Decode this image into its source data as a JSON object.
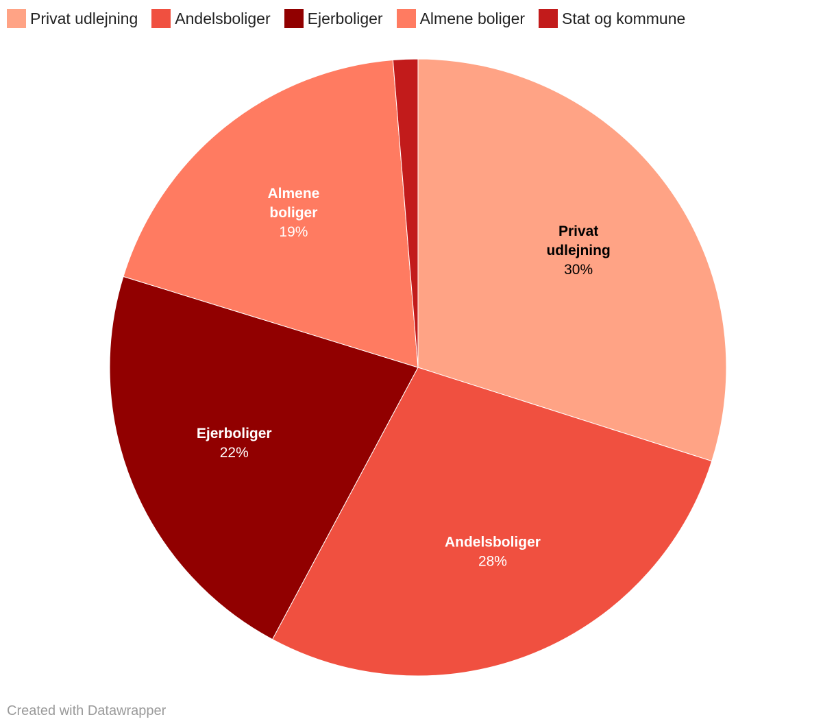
{
  "chart_data": {
    "type": "pie",
    "series": [
      {
        "name": "Privat udlejning",
        "label_lines": [
          "Privat",
          "udlejning"
        ],
        "value": 30,
        "label": "30%",
        "color": "#ffa385",
        "label_color": "#000000"
      },
      {
        "name": "Andelsboliger",
        "label_lines": [
          "Andelsboliger"
        ],
        "value": 28,
        "label": "28%",
        "color": "#f05040",
        "label_color": "#ffffff"
      },
      {
        "name": "Ejerboliger",
        "label_lines": [
          "Ejerboliger"
        ],
        "value": 22,
        "label": "22%",
        "color": "#910000",
        "label_color": "#ffffff"
      },
      {
        "name": "Almene boliger",
        "label_lines": [
          "Almene",
          "boliger"
        ],
        "value": 19,
        "label": "19%",
        "color": "#ff7b61",
        "label_color": "#ffffff"
      },
      {
        "name": "Stat og kommune",
        "label_lines": [],
        "value": 1.3,
        "label": "",
        "color": "#c21b1b",
        "label_color": "#ffffff"
      }
    ],
    "legend_position": "top-left"
  },
  "footer": {
    "credit": "Created with Datawrapper"
  }
}
